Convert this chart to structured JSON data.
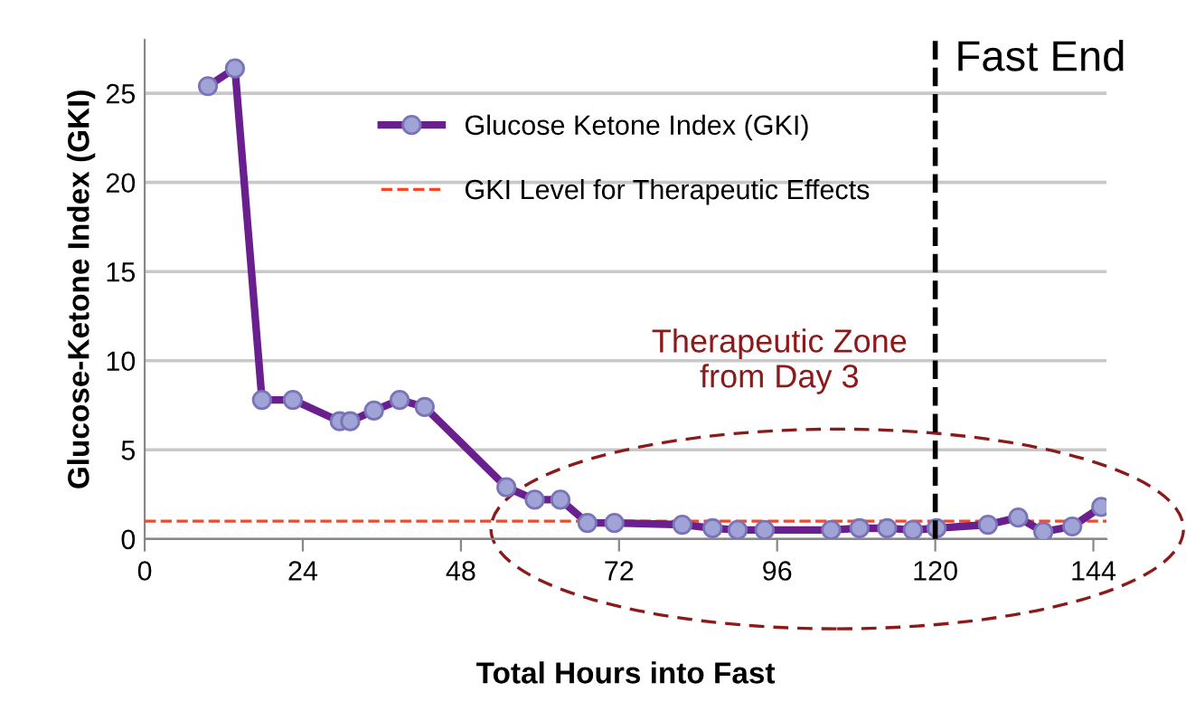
{
  "chart_data": {
    "type": "line",
    "xlabel": "Total Hours into Fast",
    "ylabel": "Glucose-Ketone Index (GKI)",
    "x": [
      9.6,
      13.7,
      17.8,
      22.5,
      29.6,
      31.2,
      34.8,
      38.7,
      42.5,
      54.9,
      59.2,
      63.1,
      67.2,
      71.3,
      81.6,
      86.2,
      90.0,
      94.1,
      104.2,
      108.5,
      112.7,
      116.6,
      120.2,
      128.0,
      132.6,
      136.4,
      140.8,
      145.2
    ],
    "series": [
      {
        "name": "Glucose Ketone Index (GKI)",
        "color": "#6a1f8f",
        "values": [
          25.4,
          26.4,
          7.8,
          7.8,
          6.6,
          6.6,
          7.2,
          7.8,
          7.4,
          2.9,
          2.2,
          2.2,
          0.9,
          0.9,
          0.8,
          0.6,
          0.5,
          0.5,
          0.5,
          0.6,
          0.6,
          0.5,
          0.6,
          0.8,
          1.2,
          0.4,
          0.7,
          1.8
        ]
      }
    ],
    "xlim": [
      0,
      146
    ],
    "xticks": [
      0,
      24,
      48,
      72,
      96,
      120,
      144
    ],
    "ylim": [
      0,
      28
    ],
    "yticks": [
      0,
      5,
      10,
      15,
      20,
      25
    ],
    "ref_lines": [
      {
        "axis": "y",
        "value": 1,
        "label": "GKI Level for Therapeutic Effects",
        "color": "#ff4422",
        "line_style": "dashed"
      },
      {
        "axis": "x",
        "value": 120,
        "label": "Fast End",
        "color": "#000000",
        "line_style": "dashed"
      }
    ],
    "annotations": [
      "Therapeutic Zone\nfrom Day 3"
    ],
    "grid": "y",
    "legend": "top",
    "marker": "circle",
    "line_style": "solid"
  }
}
